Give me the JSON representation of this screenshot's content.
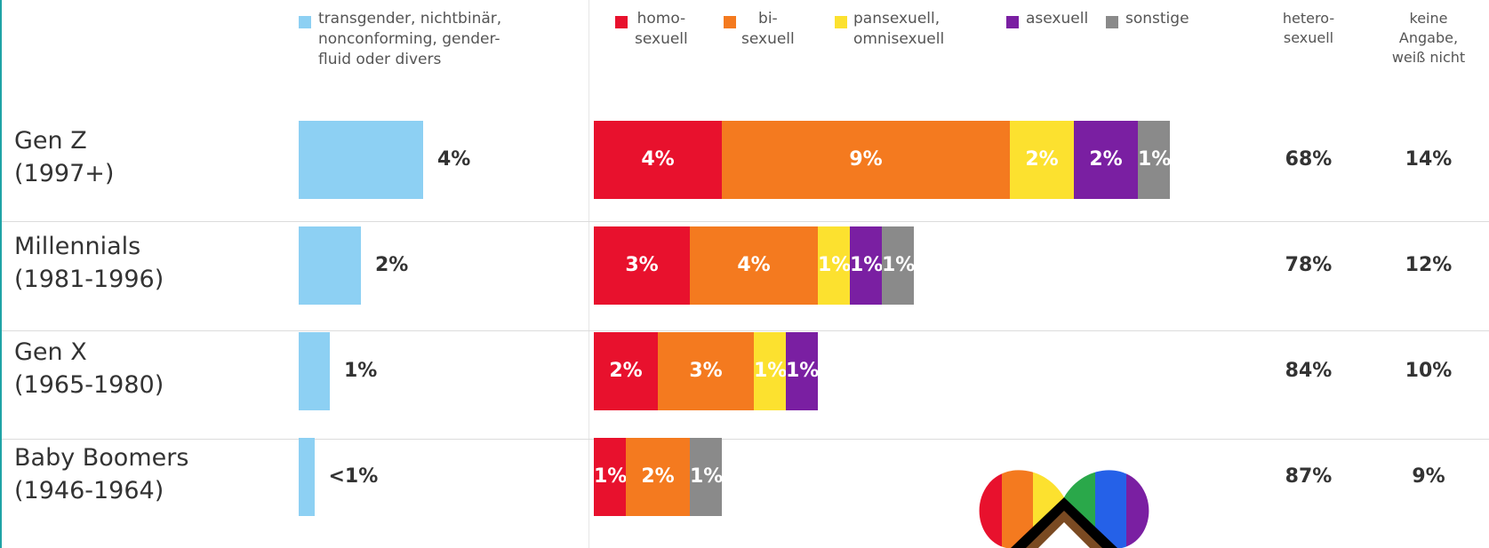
{
  "legend": {
    "trans": {
      "label": "transgender, nichtbinär,\nnonconforming, gender-\nfluid oder divers",
      "color": "#8dd0f3"
    },
    "orientation": [
      {
        "key": "homo",
        "label": "homo-\nsexuell",
        "color": "#e8112d"
      },
      {
        "key": "bi",
        "label": "bi-\nsexuell",
        "color": "#f47a1f"
      },
      {
        "key": "pan",
        "label": "pansexuell,\nomnisexuell",
        "color": "#fce12f"
      },
      {
        "key": "ase",
        "label": "asexuell",
        "color": "#7a1fa2"
      },
      {
        "key": "sonst",
        "label": "sonstige",
        "color": "#8a8a8a"
      }
    ],
    "hetero": "hetero-\nsexuell",
    "keine": "keine\nAngabe,\nweiß nicht"
  },
  "generations": [
    {
      "name": "Gen Z\n(1997+)",
      "trans": 4,
      "trans_label": "4%",
      "orient": [
        4,
        9,
        2,
        2,
        1
      ],
      "orient_labels": [
        "4%",
        "9%",
        "2%",
        "2%",
        "1%"
      ],
      "hetero": "68%",
      "keine": "14%"
    },
    {
      "name": "Millennials\n(1981-1996)",
      "trans": 2,
      "trans_label": "2%",
      "orient": [
        3,
        4,
        1,
        1,
        1
      ],
      "orient_labels": [
        "3%",
        "4%",
        "1%",
        "1%",
        "1%"
      ],
      "hetero": "78%",
      "keine": "12%"
    },
    {
      "name": "Gen X\n(1965-1980)",
      "trans": 1,
      "trans_label": "1%",
      "orient": [
        2,
        3,
        1,
        1,
        0
      ],
      "orient_labels": [
        "2%",
        "3%",
        "1%",
        "1%",
        ""
      ],
      "hetero": "84%",
      "keine": "10%"
    },
    {
      "name": "Baby Boomers\n(1946-1964)",
      "trans": 0.5,
      "trans_label": "<1%",
      "orient": [
        1,
        2,
        0,
        0,
        1
      ],
      "orient_labels": [
        "1%",
        "2%",
        "",
        "",
        "1%"
      ],
      "hetero": "87%",
      "keine": "9%"
    }
  ],
  "chart_data": {
    "type": "bar",
    "categories": [
      "Gen Z (1997+)",
      "Millennials (1981-1996)",
      "Gen X (1965-1980)",
      "Baby Boomers (1946-1964)"
    ],
    "series": [
      {
        "name": "transgender, nichtbinär, nonconforming, genderfluid oder divers",
        "values": [
          4,
          2,
          1,
          0.5
        ]
      },
      {
        "name": "homosexuell",
        "values": [
          4,
          3,
          2,
          1
        ]
      },
      {
        "name": "bisexuell",
        "values": [
          9,
          4,
          3,
          2
        ]
      },
      {
        "name": "pansexuell, omnisexuell",
        "values": [
          2,
          1,
          1,
          0
        ]
      },
      {
        "name": "asexuell",
        "values": [
          2,
          1,
          1,
          0
        ]
      },
      {
        "name": "sonstige",
        "values": [
          1,
          1,
          0,
          1
        ]
      },
      {
        "name": "heterosexuell",
        "values": [
          68,
          78,
          84,
          87
        ]
      },
      {
        "name": "keine Angabe, weiß nicht",
        "values": [
          14,
          12,
          10,
          9
        ]
      }
    ],
    "orientation_bar": "stacked-horizontal",
    "legend_position": "top",
    "grid": false
  }
}
